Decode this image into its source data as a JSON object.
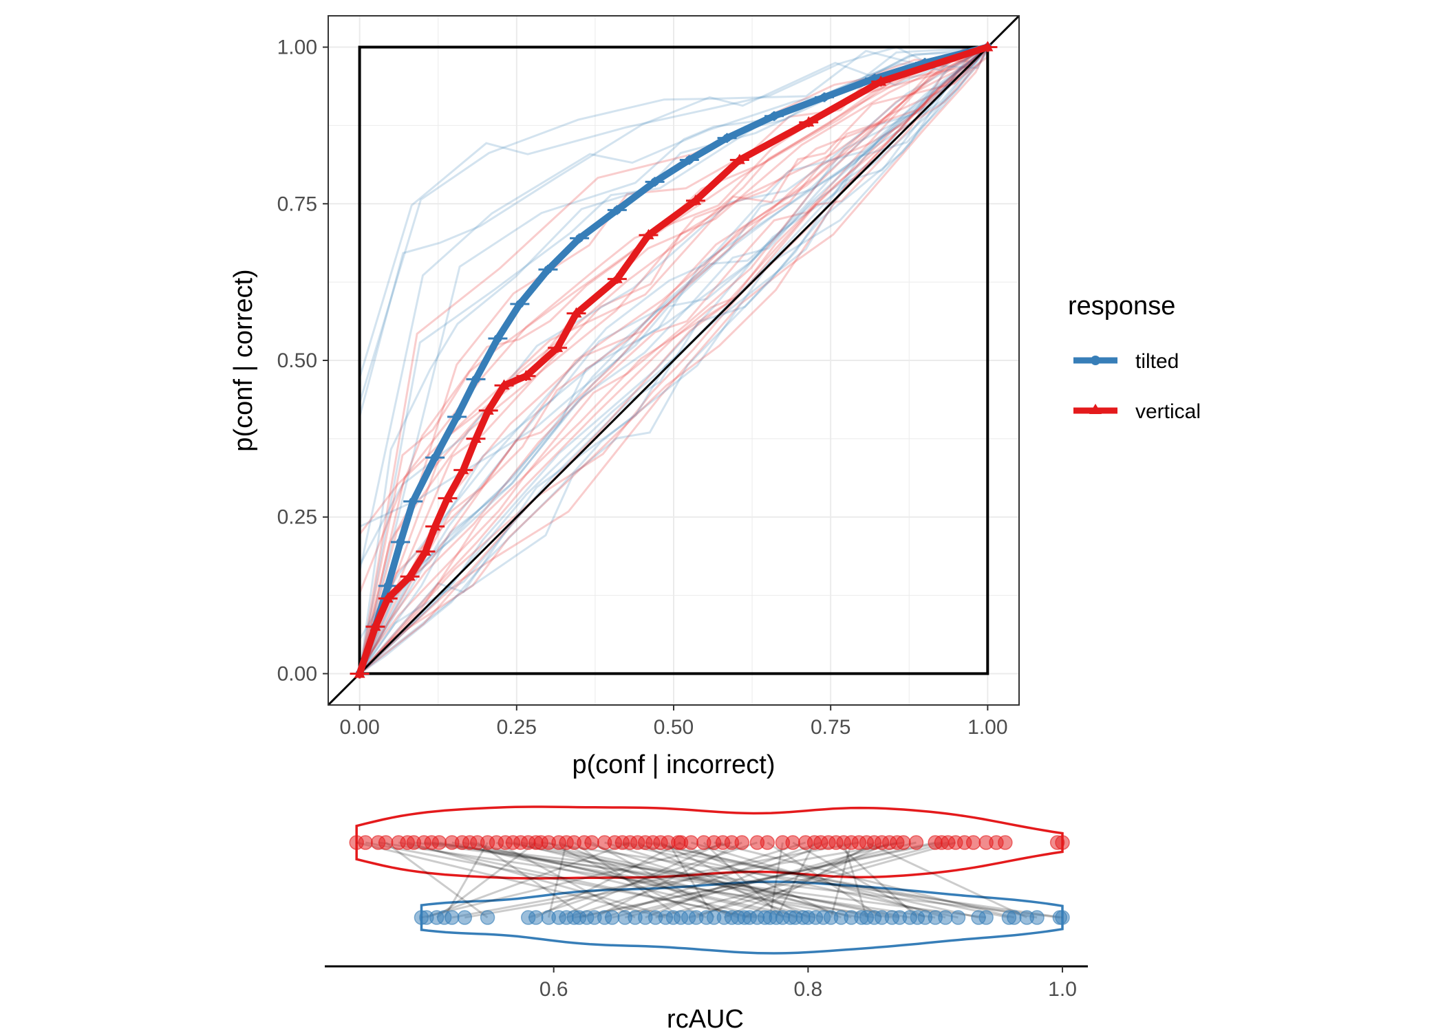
{
  "colors": {
    "tilted": "#377eb8",
    "vertical": "#e41a1c",
    "grid": "#ebebeb",
    "panel_border": "#333333"
  },
  "roc_chart": {
    "type": "line",
    "xlabel": "p(conf | incorrect)",
    "ylabel": "p(conf | correct)",
    "xlim": [
      -0.05,
      1.05
    ],
    "ylim": [
      -0.05,
      1.05
    ],
    "x_ticks": [
      "0.00",
      "0.25",
      "0.50",
      "0.75",
      "1.00"
    ],
    "y_ticks": [
      "0.00",
      "0.25",
      "0.50",
      "0.75",
      "1.00"
    ],
    "tick_values": [
      0,
      0.25,
      0.5,
      0.75,
      1
    ],
    "grid": true,
    "legend": {
      "title": "response",
      "position": "right",
      "entries": [
        {
          "label": "tilted",
          "color": "#377eb8",
          "marker": "circle"
        },
        {
          "label": "vertical",
          "color": "#e41a1c",
          "marker": "triangle"
        }
      ]
    },
    "chart_data": {
      "type": "line",
      "series": [
        {
          "name": "tilted",
          "points": [
            [
              0,
              0
            ],
            [
              0.025,
              0.075
            ],
            [
              0.045,
              0.14
            ],
            [
              0.065,
              0.21
            ],
            [
              0.085,
              0.275
            ],
            [
              0.12,
              0.345
            ],
            [
              0.155,
              0.41
            ],
            [
              0.185,
              0.47
            ],
            [
              0.22,
              0.535
            ],
            [
              0.255,
              0.59
            ],
            [
              0.3,
              0.645
            ],
            [
              0.35,
              0.695
            ],
            [
              0.41,
              0.74
            ],
            [
              0.47,
              0.785
            ],
            [
              0.525,
              0.82
            ],
            [
              0.585,
              0.855
            ],
            [
              0.66,
              0.89
            ],
            [
              0.74,
              0.92
            ],
            [
              0.82,
              0.95
            ],
            [
              0.9,
              0.975
            ],
            [
              1,
              1
            ]
          ]
        },
        {
          "name": "vertical",
          "points": [
            [
              0,
              0
            ],
            [
              0.025,
              0.075
            ],
            [
              0.045,
              0.12
            ],
            [
              0.08,
              0.155
            ],
            [
              0.105,
              0.195
            ],
            [
              0.12,
              0.235
            ],
            [
              0.14,
              0.28
            ],
            [
              0.165,
              0.325
            ],
            [
              0.185,
              0.375
            ],
            [
              0.205,
              0.42
            ],
            [
              0.23,
              0.46
            ],
            [
              0.265,
              0.475
            ],
            [
              0.315,
              0.52
            ],
            [
              0.345,
              0.575
            ],
            [
              0.41,
              0.63
            ],
            [
              0.46,
              0.7
            ],
            [
              0.535,
              0.755
            ],
            [
              0.605,
              0.82
            ],
            [
              0.715,
              0.88
            ],
            [
              0.83,
              0.945
            ],
            [
              1,
              1
            ]
          ]
        }
      ]
    }
  },
  "rcauc_chart": {
    "type": "scatter",
    "xlabel": "rcAUC",
    "xlim": [
      0.42,
      1.02
    ],
    "x_ticks": [
      "0.6",
      "0.8",
      "1.0"
    ],
    "tick_values": [
      0.6,
      0.8,
      1.0
    ],
    "chart_data": {
      "type": "scatter",
      "series": [
        {
          "name": "vertical",
          "values": [
            0.445,
            0.452,
            0.462,
            0.468,
            0.478,
            0.485,
            0.49,
            0.498,
            0.504,
            0.51,
            0.52,
            0.528,
            0.534,
            0.54,
            0.548,
            0.555,
            0.562,
            0.568,
            0.574,
            0.58,
            0.586,
            0.59,
            0.596,
            0.604,
            0.61,
            0.616,
            0.624,
            0.63,
            0.64,
            0.648,
            0.654,
            0.66,
            0.666,
            0.672,
            0.678,
            0.684,
            0.69,
            0.698,
            0.7,
            0.708,
            0.718,
            0.726,
            0.733,
            0.74,
            0.748,
            0.76,
            0.768,
            0.78,
            0.788,
            0.798,
            0.805,
            0.81,
            0.816,
            0.822,
            0.828,
            0.834,
            0.84,
            0.846,
            0.852,
            0.858,
            0.864,
            0.87,
            0.875,
            0.885,
            0.9,
            0.905,
            0.91,
            0.916,
            0.923,
            0.93,
            0.94,
            0.948,
            0.955,
            0.996,
            1.0
          ]
        },
        {
          "name": "tilted",
          "values": [
            0.496,
            0.5,
            0.508,
            0.514,
            0.52,
            0.53,
            0.548,
            0.58,
            0.586,
            0.596,
            0.604,
            0.61,
            0.616,
            0.62,
            0.626,
            0.632,
            0.64,
            0.646,
            0.656,
            0.664,
            0.672,
            0.68,
            0.688,
            0.694,
            0.7,
            0.706,
            0.712,
            0.72,
            0.726,
            0.734,
            0.74,
            0.745,
            0.75,
            0.754,
            0.76,
            0.766,
            0.77,
            0.775,
            0.78,
            0.786,
            0.79,
            0.796,
            0.8,
            0.806,
            0.812,
            0.818,
            0.826,
            0.834,
            0.842,
            0.846,
            0.852,
            0.858,
            0.866,
            0.872,
            0.88,
            0.886,
            0.892,
            0.9,
            0.908,
            0.918,
            0.934,
            0.94,
            0.958,
            0.962,
            0.972,
            0.98,
            0.998,
            1.0
          ]
        }
      ]
    }
  }
}
